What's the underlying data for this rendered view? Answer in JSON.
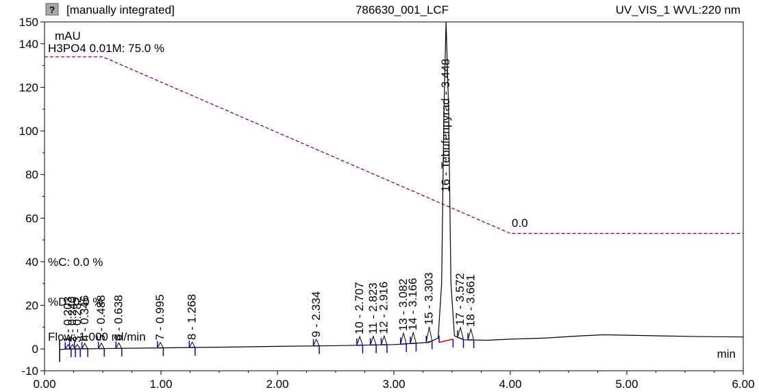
{
  "header": {
    "icon": "report-icon",
    "left": "[manually integrated]",
    "center": "786630_001_LCF",
    "right": "UV_VIS_1 WVL:220 nm"
  },
  "chart_data": {
    "type": "line",
    "title": "786630_001_LCF",
    "ylabel": "mAU",
    "xlabel": "min",
    "xlim": [
      0.0,
      6.0
    ],
    "ylim": [
      -10,
      150
    ],
    "x_ticks": [
      "0.00",
      "1.00",
      "2.00",
      "3.00",
      "4.00",
      "5.00",
      "6.00"
    ],
    "y_ticks": [
      -10,
      0,
      20,
      40,
      60,
      80,
      100,
      120,
      140,
      150
    ],
    "grid": false,
    "series": [
      {
        "name": "",
        "x": [
          0.13,
          0.2,
          0.5,
          1.0,
          1.5,
          2.0,
          2.5,
          3.0,
          3.3,
          3.38,
          3.41,
          3.43,
          3.448,
          3.47,
          3.49,
          3.52,
          3.6,
          3.8,
          4.0,
          4.3,
          4.6,
          4.8,
          5.0,
          5.3,
          5.6,
          6.0
        ],
        "y": [
          -0.3,
          0.0,
          0.2,
          0.5,
          0.8,
          1.2,
          1.5,
          2.0,
          3.0,
          5.0,
          30.0,
          110.0,
          150.0,
          110.0,
          30.0,
          6.0,
          4.2,
          4.0,
          4.5,
          5.0,
          6.0,
          6.5,
          6.3,
          6.0,
          5.7,
          5.5
        ]
      },
      {
        "name": "gradient",
        "x": [
          0.0,
          0.5,
          4.0,
          6.0
        ],
        "y": [
          134.0,
          134.0,
          53.0,
          53.0
        ]
      }
    ],
    "gradient_labels": {
      "start": "H3PO4 0.01M: 75.0 %",
      "end": "0.0"
    },
    "left_annotations": {
      "percent_c": "%C: 0.0 %",
      "percent_d": "%D: 0.0 %",
      "flow": "Flow: 1.000 ml/min"
    },
    "peaks": [
      {
        "label": "1 - 0.203",
        "rt": 0.203,
        "h": 2.0
      },
      {
        "label": "2 - 0.240",
        "rt": 0.24,
        "h": 2.0
      },
      {
        "label": "3 - 0.282",
        "rt": 0.282,
        "h": 2.0
      },
      {
        "label": "4 - 0.346",
        "rt": 0.346,
        "h": 2.5
      },
      {
        "label": "5 - 0.488",
        "rt": 0.488,
        "h": 2.5
      },
      {
        "label": "6 - 0.638",
        "rt": 0.638,
        "h": 2.5
      },
      {
        "label": "7 - 0.995",
        "rt": 0.995,
        "h": 2.5
      },
      {
        "label": "8 - 1.268",
        "rt": 1.268,
        "h": 2.5
      },
      {
        "label": "9 - 2.334",
        "rt": 2.334,
        "h": 3.0
      },
      {
        "label": "10 - 2.707",
        "rt": 2.707,
        "h": 4.0
      },
      {
        "label": "11 - 2.823",
        "rt": 2.823,
        "h": 4.0
      },
      {
        "label": "12 - 2.916",
        "rt": 2.916,
        "h": 4.0
      },
      {
        "label": "13 - 3.082",
        "rt": 3.082,
        "h": 5.0
      },
      {
        "label": "14 - 3.166",
        "rt": 3.166,
        "h": 5.0
      },
      {
        "label": "15 - 3.303",
        "rt": 3.303,
        "h": 7.0
      },
      {
        "label": "16 - Tebufenpyrad - 3.448",
        "rt": 3.448,
        "h": 150.0
      },
      {
        "label": "17 - 3.572",
        "rt": 3.572,
        "h": 5.0
      },
      {
        "label": "18 - 3.661",
        "rt": 3.661,
        "h": 5.0
      }
    ],
    "colors": {
      "signal": "#000000",
      "gradient": "#800080",
      "baseline": "#e00000",
      "markers": "#0000e0",
      "peak_label": "#000000"
    }
  }
}
